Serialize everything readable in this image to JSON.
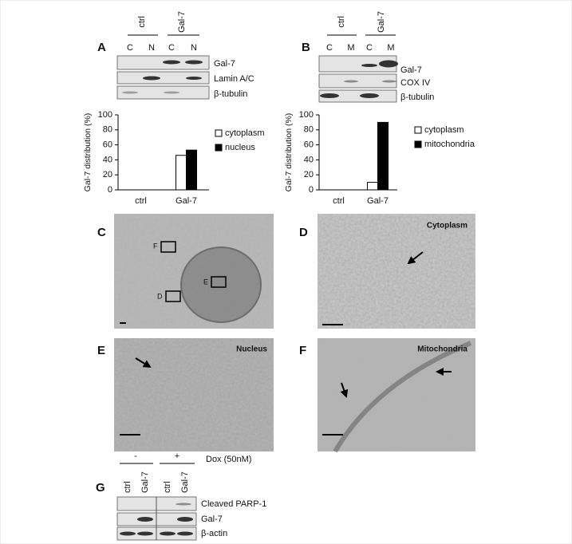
{
  "panel_a": {
    "label": "A",
    "groups": [
      "ctrl",
      "Gal-7"
    ],
    "lanes": [
      "C",
      "N",
      "C",
      "N"
    ],
    "blots": [
      "Gal-7",
      "Lamin A/C",
      "β-tubulin"
    ]
  },
  "panel_b": {
    "label": "B",
    "groups": [
      "ctrl",
      "Gal-7"
    ],
    "lanes": [
      "C",
      "M",
      "C",
      "M"
    ],
    "blots": [
      "Gal-7",
      "COX IV",
      "β-tubulin"
    ]
  },
  "chart_data": [
    {
      "type": "bar",
      "y_label": "Gal-7 distribution (%)",
      "categories": [
        "ctrl",
        "Gal-7"
      ],
      "series": [
        {
          "name": "cytoplasm",
          "color": "#ffffff",
          "values": [
            0,
            46
          ]
        },
        {
          "name": "nucleus",
          "color": "#000000",
          "values": [
            0,
            53
          ]
        }
      ],
      "ylim": [
        0,
        100
      ],
      "yticks": [
        0,
        20,
        40,
        60,
        80,
        100
      ]
    },
    {
      "type": "bar",
      "y_label": "Gal-7 distribution (%)",
      "categories": [
        "ctrl",
        "Gal-7"
      ],
      "series": [
        {
          "name": "cytoplasm",
          "color": "#ffffff",
          "values": [
            0,
            10
          ]
        },
        {
          "name": "mitochondria",
          "color": "#000000",
          "values": [
            0,
            90
          ]
        }
      ],
      "ylim": [
        0,
        100
      ],
      "yticks": [
        0,
        20,
        40,
        60,
        80,
        100
      ]
    }
  ],
  "micrographs": {
    "c": {
      "label": "C",
      "boxes": [
        "F",
        "E",
        "D"
      ]
    },
    "d": {
      "label": "D",
      "title": "Cytoplasm"
    },
    "e": {
      "label": "E",
      "title": "Nucleus"
    },
    "f": {
      "label": "F",
      "title": "Mitochondria"
    }
  },
  "panel_g": {
    "label": "G",
    "treatment": "Dox (50nM)",
    "conditions": [
      "-",
      "+"
    ],
    "lanes": [
      "ctrl",
      "Gal-7",
      "ctrl",
      "Gal-7"
    ],
    "blots": [
      "Cleaved PARP-1",
      "Gal-7",
      "β-actin"
    ]
  }
}
